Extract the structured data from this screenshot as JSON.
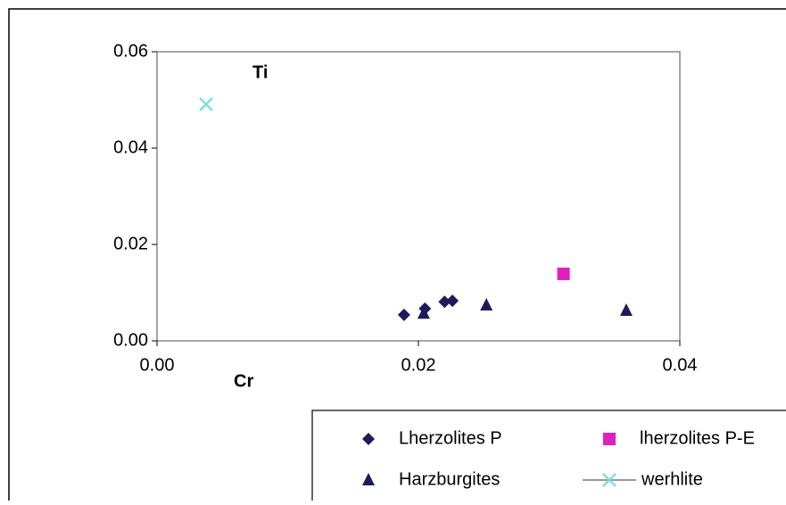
{
  "chart_data": {
    "type": "scatter",
    "x_label": "Cr",
    "y_label": "Ti",
    "xlim": [
      0,
      0.04
    ],
    "ylim": [
      0,
      0.06
    ],
    "xticks": [
      {
        "value": 0,
        "label": "0.00"
      },
      {
        "value": 0.02,
        "label": "0.02"
      },
      {
        "value": 0.04,
        "label": "0.04"
      }
    ],
    "yticks": [
      {
        "value": 0,
        "label": "0.00"
      },
      {
        "value": 0.02,
        "label": "0.02"
      },
      {
        "value": 0.04,
        "label": "0.04"
      },
      {
        "value": 0.06,
        "label": "0.06"
      }
    ],
    "series": [
      {
        "name": "Lherzolites P",
        "color": "#1c1c5a",
        "marker": "diamond",
        "x": [
          0.0189,
          0.0205,
          0.022,
          0.0226
        ],
        "values": [
          0.0054,
          0.0067,
          0.0081,
          0.0083
        ]
      },
      {
        "name": "lherzolites P-E",
        "color": "#e020c0",
        "marker": "square",
        "x": [
          0.0311
        ],
        "values": [
          0.0139
        ]
      },
      {
        "name": "Harzburgites",
        "color": "#1c1c5a",
        "marker": "triangle",
        "x": [
          0.0204,
          0.0252,
          0.0359
        ],
        "values": [
          0.0057,
          0.0074,
          0.0063
        ]
      },
      {
        "name": "werhlite",
        "color": "#7fdede",
        "marker": "x",
        "x": [
          0.00375
        ],
        "values": [
          0.0491
        ]
      }
    ]
  }
}
